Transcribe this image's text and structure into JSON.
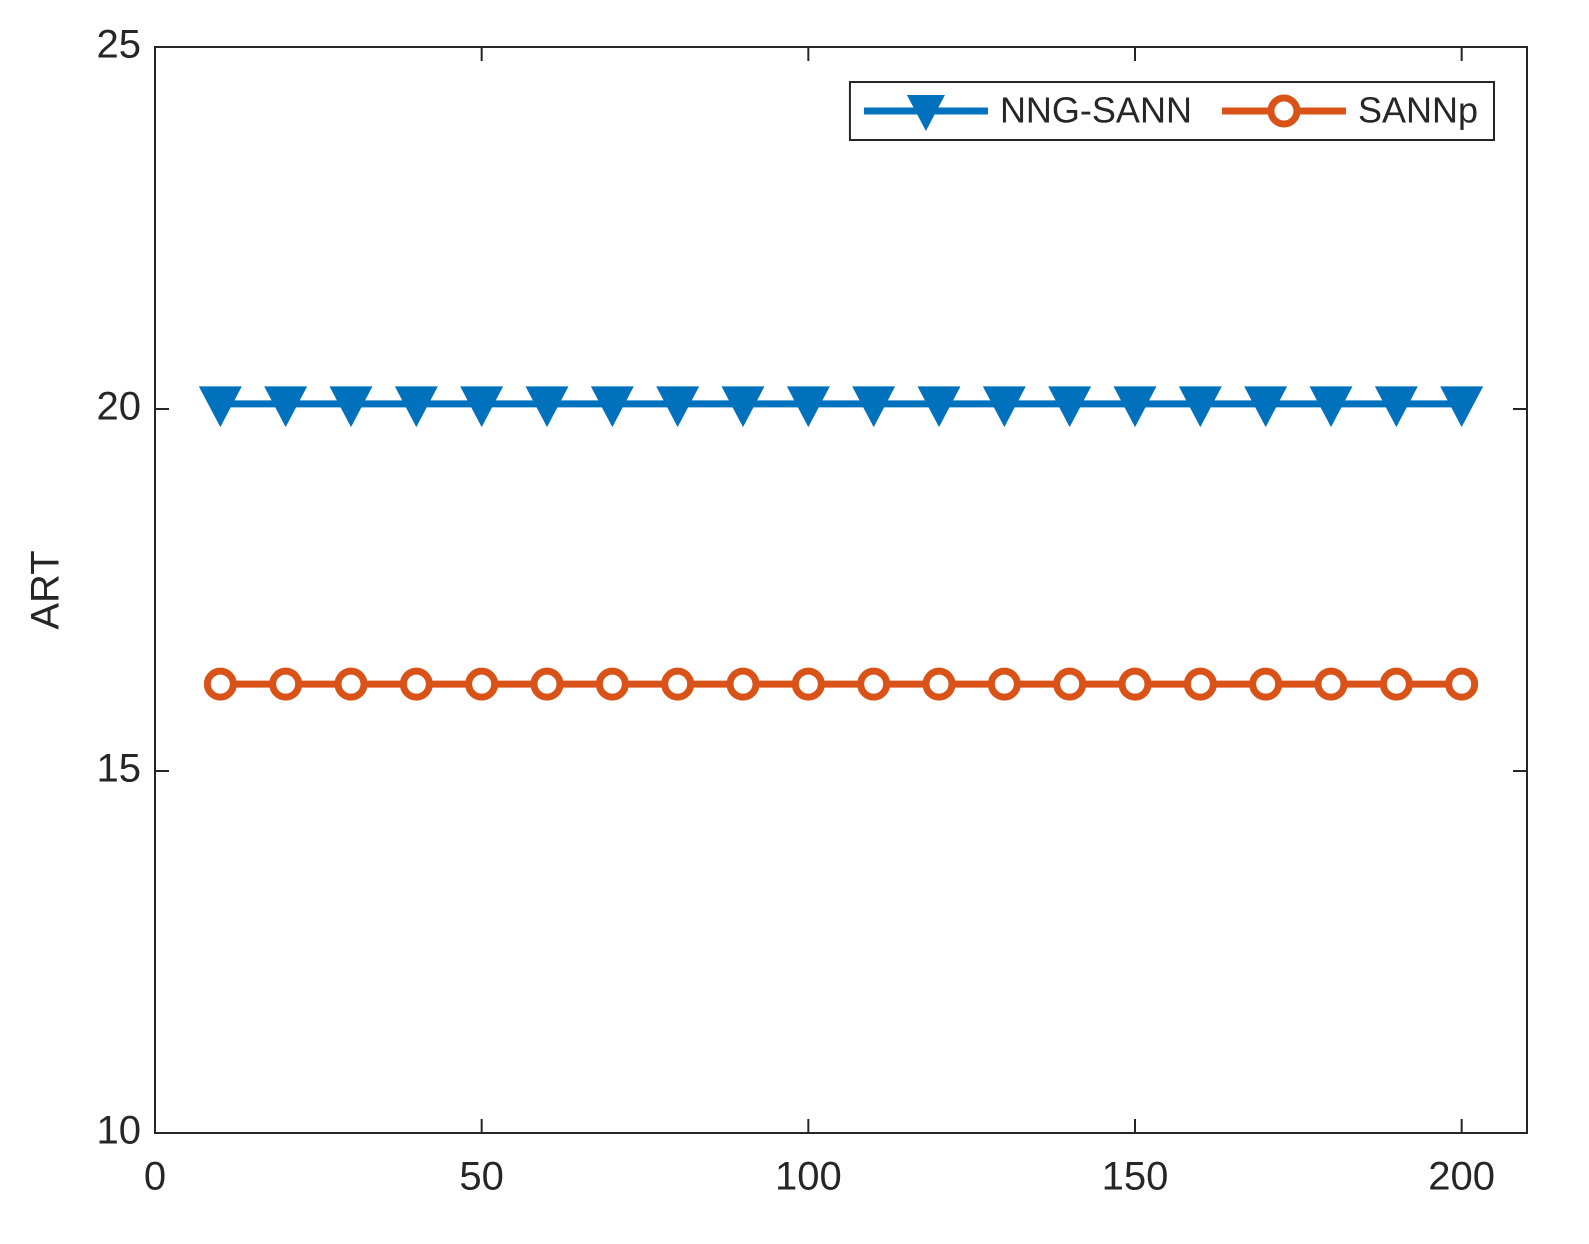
{
  "chart_data": {
    "type": "line",
    "y_label": "ART",
    "x": [
      10,
      20,
      30,
      40,
      50,
      60,
      70,
      80,
      90,
      100,
      110,
      120,
      130,
      140,
      150,
      160,
      170,
      180,
      190,
      200
    ],
    "series": [
      {
        "name": "NNG-SANN",
        "color": "#0072BD",
        "marker": "triangle-down",
        "values": [
          20.07,
          20.07,
          20.07,
          20.07,
          20.07,
          20.07,
          20.07,
          20.07,
          20.07,
          20.07,
          20.07,
          20.07,
          20.07,
          20.07,
          20.07,
          20.07,
          20.07,
          20.07,
          20.07,
          20.07
        ]
      },
      {
        "name": "SANNp",
        "color": "#D95319",
        "marker": "circle",
        "values": [
          16.2,
          16.2,
          16.2,
          16.2,
          16.2,
          16.2,
          16.2,
          16.2,
          16.2,
          16.2,
          16.2,
          16.2,
          16.2,
          16.2,
          16.2,
          16.2,
          16.2,
          16.2,
          16.2,
          16.2
        ]
      }
    ],
    "xlim": [
      0,
      210
    ],
    "xticks": [
      0,
      50,
      100,
      150,
      200
    ],
    "ylim": [
      10,
      25
    ],
    "yticks": [
      10,
      15,
      20,
      25
    ],
    "grid": false,
    "legend": "top-right"
  }
}
